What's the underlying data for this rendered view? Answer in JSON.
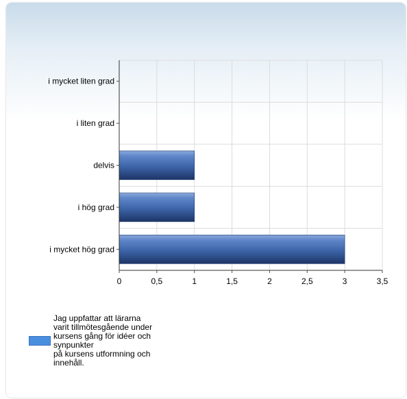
{
  "chart_data": {
    "type": "bar",
    "orientation": "horizontal",
    "categories": [
      "i mycket liten grad",
      "i liten grad",
      "delvis",
      "i hög grad",
      "i mycket hög grad"
    ],
    "series": [
      {
        "name": "Jag uppfattar att lärarna\nvarit tillmötesgående under\nkursens gång för idéer och\nsynpunkter\npå kursens utformning och\ninnehåll.",
        "values": [
          0,
          0,
          1,
          1,
          3
        ]
      }
    ],
    "xlim": [
      0,
      3.5
    ],
    "xticks": [
      "0",
      "0,5",
      "1",
      "1,5",
      "2",
      "2,5",
      "3",
      "3,5"
    ],
    "grid": true,
    "legend_position": "bottom-left",
    "colors": {
      "bar": "#3d64a8",
      "legend": "#4a8ee0"
    }
  }
}
